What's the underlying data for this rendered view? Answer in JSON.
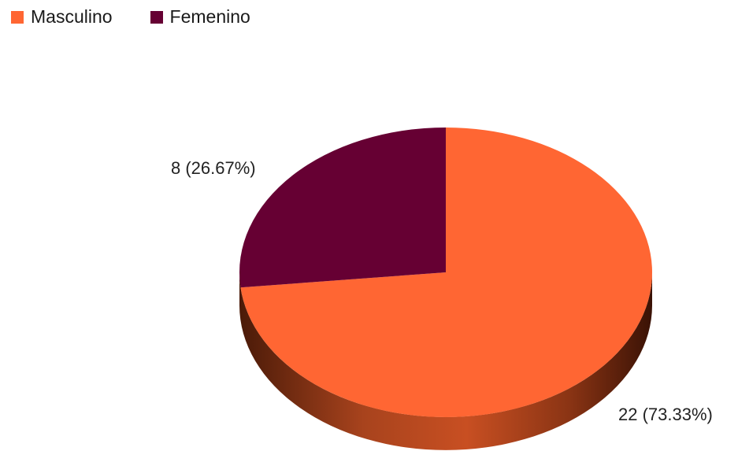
{
  "chart_data": {
    "type": "pie",
    "series": [
      {
        "name": "Masculino",
        "value": 22,
        "label": "22 (73.33%)",
        "color": "#FF6633"
      },
      {
        "name": "Femenino",
        "value": 8,
        "label": "8 (26.67%)",
        "color": "#660033"
      }
    ],
    "legend_position": "top-left",
    "style": "3d"
  }
}
